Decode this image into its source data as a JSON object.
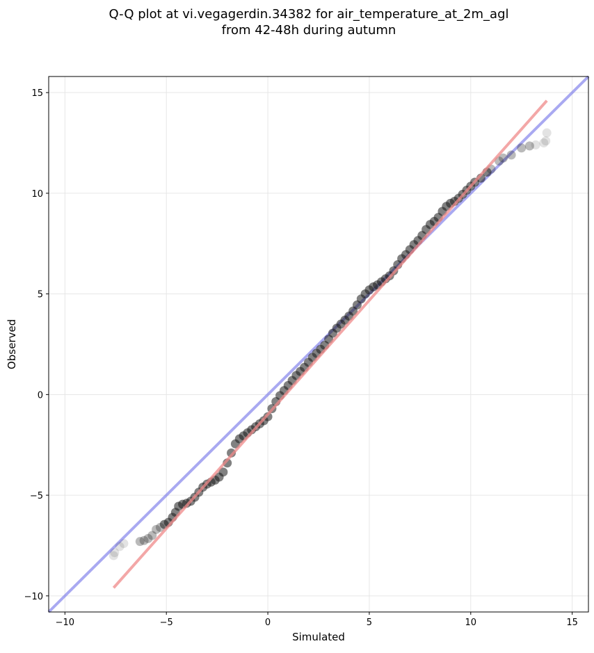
{
  "title_line1": "Q-Q plot at vi.vegagerdin.34382 for air_temperature_at_2m_agl",
  "title_line2": "from 42-48h during autumn",
  "chart_data": {
    "type": "scatter",
    "title": "Q-Q plot at vi.vegagerdin.34382 for air_temperature_at_2m_agl from 42-48h during autumn",
    "xlabel": "Simulated",
    "ylabel": "Observed",
    "xlim": [
      -10.8,
      15.8
    ],
    "ylim": [
      -10.8,
      15.8
    ],
    "xticks": [
      -10,
      -5,
      0,
      5,
      10,
      15
    ],
    "yticks": [
      -10,
      -5,
      0,
      5,
      10,
      15
    ],
    "xtick_labels": [
      "−10",
      "−5",
      "0",
      "5",
      "10",
      "15"
    ],
    "ytick_labels": [
      "−10",
      "−5",
      "0",
      "5",
      "10",
      "15"
    ],
    "grid": true,
    "identity_line": {
      "color": "#7b7bea",
      "from": [
        -10.8,
        -10.8
      ],
      "to": [
        15.8,
        15.8
      ]
    },
    "fit_line": {
      "color": "#ef8a8a",
      "from": [
        -7.6,
        -9.6
      ],
      "to": [
        13.75,
        14.6
      ]
    },
    "quantile_points": [
      [
        -7.6,
        -8.0
      ],
      [
        -7.55,
        -7.85
      ],
      [
        -7.3,
        -7.55
      ],
      [
        -7.1,
        -7.4
      ],
      [
        -6.3,
        -7.3
      ],
      [
        -6.1,
        -7.25
      ],
      [
        -5.9,
        -7.15
      ],
      [
        -5.7,
        -7.0
      ],
      [
        -5.5,
        -6.7
      ],
      [
        -5.3,
        -6.6
      ],
      [
        -5.1,
        -6.45
      ],
      [
        -4.9,
        -6.35
      ],
      [
        -4.7,
        -6.1
      ],
      [
        -4.55,
        -5.85
      ],
      [
        -4.4,
        -5.55
      ],
      [
        -4.2,
        -5.45
      ],
      [
        -4.0,
        -5.4
      ],
      [
        -3.8,
        -5.3
      ],
      [
        -3.6,
        -5.1
      ],
      [
        -3.4,
        -4.85
      ],
      [
        -3.2,
        -4.6
      ],
      [
        -3.0,
        -4.45
      ],
      [
        -2.8,
        -4.35
      ],
      [
        -2.6,
        -4.25
      ],
      [
        -2.4,
        -4.1
      ],
      [
        -2.2,
        -3.85
      ],
      [
        -2.0,
        -3.4
      ],
      [
        -1.8,
        -2.9
      ],
      [
        -1.6,
        -2.45
      ],
      [
        -1.4,
        -2.2
      ],
      [
        -1.2,
        -2.05
      ],
      [
        -1.0,
        -1.9
      ],
      [
        -0.8,
        -1.75
      ],
      [
        -0.6,
        -1.6
      ],
      [
        -0.4,
        -1.45
      ],
      [
        -0.2,
        -1.3
      ],
      [
        0.0,
        -1.1
      ],
      [
        0.2,
        -0.7
      ],
      [
        0.4,
        -0.35
      ],
      [
        0.6,
        -0.05
      ],
      [
        0.8,
        0.2
      ],
      [
        1.0,
        0.45
      ],
      [
        1.2,
        0.7
      ],
      [
        1.4,
        0.95
      ],
      [
        1.6,
        1.15
      ],
      [
        1.8,
        1.35
      ],
      [
        2.0,
        1.6
      ],
      [
        2.2,
        1.85
      ],
      [
        2.4,
        2.05
      ],
      [
        2.6,
        2.25
      ],
      [
        2.8,
        2.45
      ],
      [
        3.0,
        2.75
      ],
      [
        3.2,
        3.05
      ],
      [
        3.4,
        3.3
      ],
      [
        3.6,
        3.5
      ],
      [
        3.8,
        3.7
      ],
      [
        4.0,
        3.9
      ],
      [
        4.2,
        4.15
      ],
      [
        4.4,
        4.45
      ],
      [
        4.6,
        4.75
      ],
      [
        4.8,
        5.0
      ],
      [
        5.0,
        5.2
      ],
      [
        5.2,
        5.35
      ],
      [
        5.4,
        5.45
      ],
      [
        5.6,
        5.6
      ],
      [
        5.8,
        5.75
      ],
      [
        6.0,
        5.9
      ],
      [
        6.2,
        6.15
      ],
      [
        6.4,
        6.45
      ],
      [
        6.6,
        6.75
      ],
      [
        6.8,
        6.95
      ],
      [
        7.0,
        7.2
      ],
      [
        7.2,
        7.45
      ],
      [
        7.4,
        7.65
      ],
      [
        7.6,
        7.9
      ],
      [
        7.8,
        8.2
      ],
      [
        8.0,
        8.45
      ],
      [
        8.2,
        8.6
      ],
      [
        8.4,
        8.8
      ],
      [
        8.6,
        9.1
      ],
      [
        8.8,
        9.35
      ],
      [
        9.0,
        9.5
      ],
      [
        9.2,
        9.6
      ],
      [
        9.4,
        9.75
      ],
      [
        9.6,
        9.95
      ],
      [
        9.8,
        10.15
      ],
      [
        10.0,
        10.35
      ],
      [
        10.2,
        10.55
      ],
      [
        10.5,
        10.75
      ],
      [
        10.8,
        11.05
      ],
      [
        11.0,
        11.2
      ],
      [
        11.4,
        11.6
      ],
      [
        11.6,
        11.75
      ],
      [
        12.0,
        11.9
      ],
      [
        12.5,
        12.25
      ],
      [
        12.9,
        12.35
      ],
      [
        13.2,
        12.4
      ],
      [
        13.6,
        12.5
      ],
      [
        13.7,
        12.6
      ],
      [
        13.75,
        13.0
      ]
    ]
  }
}
